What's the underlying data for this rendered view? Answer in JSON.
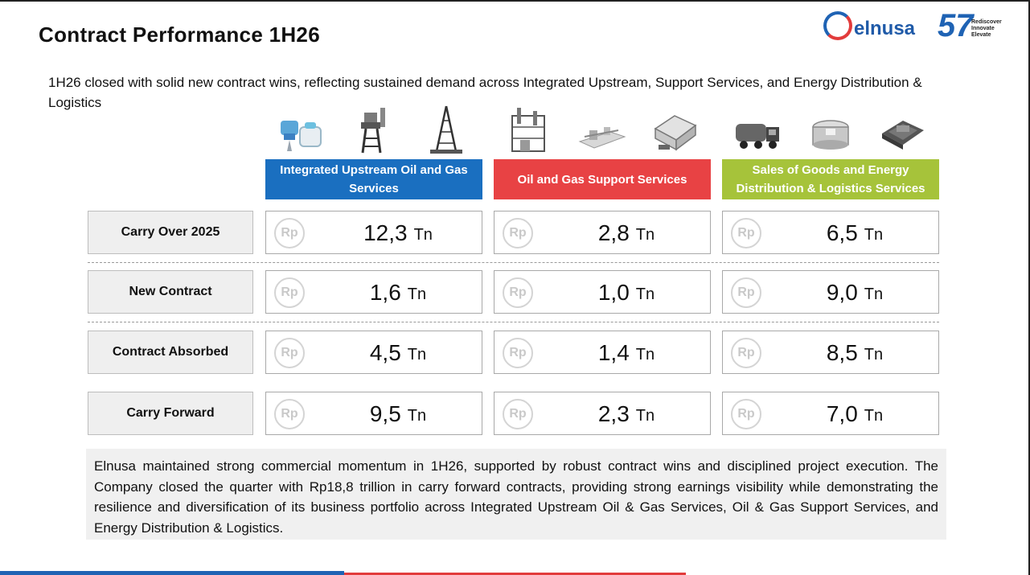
{
  "title": "Contract Performance 1H26",
  "brand": {
    "logo_text": "elnusa",
    "anniversary_number": "57",
    "anniversary_tagline": [
      "Rediscover",
      "Innovate",
      "Elevate"
    ],
    "primary_color": "#1f63b4",
    "secondary_color": "#e23b3b"
  },
  "intro": "1H26 closed with solid new contract wins, reflecting sustained demand across Integrated Upstream, Support Services, and Energy Distribution & Logistics",
  "segments": [
    {
      "name": "Integrated Upstream Oil and Gas Services",
      "color": "#1a6fc0",
      "icons": [
        "seismic-sensor-icon",
        "drilling-rig-icon",
        "derrick-tower-icon"
      ]
    },
    {
      "name": "Oil and Gas Support Services",
      "color": "#e84244",
      "icons": [
        "process-plant-icon",
        "pipeline-facility-icon",
        "warehouse-icon"
      ]
    },
    {
      "name": "Sales of Goods and Energy Distribution & Logistics Services",
      "color": "#a6c33a",
      "icons": [
        "fuel-truck-icon",
        "storage-tank-icon",
        "terminal-depot-icon"
      ]
    }
  ],
  "currency_symbol": "Rp",
  "unit": "Tn",
  "rows": [
    {
      "label": "Carry Over 2025",
      "values": [
        "12,3",
        "2,8",
        "6,5"
      ]
    },
    {
      "label": "New Contract",
      "values": [
        "1,6",
        "1,0",
        "9,0"
      ]
    },
    {
      "label": "Contract Absorbed",
      "values": [
        "4,5",
        "1,4",
        "8,5"
      ]
    },
    {
      "label": "Carry Forward",
      "values": [
        "9,5",
        "2,3",
        "7,0"
      ]
    }
  ],
  "summary": "Elnusa maintained strong commercial momentum in 1H26, supported by robust contract wins and disciplined project execution. The Company closed the quarter with Rp18,8 trillion in carry forward contracts, providing strong earnings visibility while demonstrating the resilience and diversification of its business portfolio across Integrated Upstream Oil & Gas Services, Oil & Gas Support Services, and Energy Distribution & Logistics."
}
